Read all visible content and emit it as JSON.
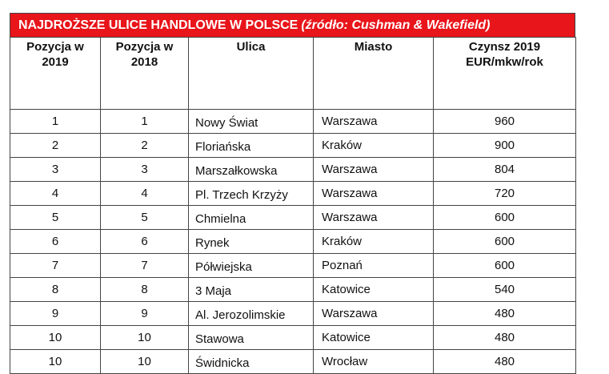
{
  "title": {
    "main": "NAJDROŻSZE ULICE HANDLOWE W POLSCE",
    "source": "(źródło: Cushman & Wakefield)"
  },
  "colors": {
    "title_background": "#e8151a",
    "title_text": "#ffffff",
    "border": "#444444"
  },
  "columns": {
    "pos2019": [
      "Pozycja w",
      "2019"
    ],
    "pos2018": [
      "Pozycja w",
      "2018"
    ],
    "street": "Ulica",
    "city": "Miasto",
    "rent": [
      "Czynsz 2019",
      "EUR/mkw/rok"
    ]
  },
  "rows": [
    {
      "pos2019": "1",
      "pos2018": "1",
      "street": "Nowy Świat",
      "city": "Warszawa",
      "rent": "960"
    },
    {
      "pos2019": "2",
      "pos2018": "2",
      "street": "Floriańska",
      "city": "Kraków",
      "rent": "900"
    },
    {
      "pos2019": "3",
      "pos2018": "3",
      "street": "Marszałkowska",
      "city": "Warszawa",
      "rent": "804"
    },
    {
      "pos2019": "4",
      "pos2018": "4",
      "street": "Pl. Trzech Krzyży",
      "city": "Warszawa",
      "rent": "720"
    },
    {
      "pos2019": "5",
      "pos2018": "5",
      "street": "Chmielna",
      "city": "Warszawa",
      "rent": "600"
    },
    {
      "pos2019": "6",
      "pos2018": "6",
      "street": "Rynek",
      "city": "Kraków",
      "rent": "600"
    },
    {
      "pos2019": "7",
      "pos2018": "7",
      "street": "Półwiejska",
      "city": "Poznań",
      "rent": "600"
    },
    {
      "pos2019": "8",
      "pos2018": "8",
      "street": "3 Maja",
      "city": "Katowice",
      "rent": "540"
    },
    {
      "pos2019": "9",
      "pos2018": "9",
      "street": "Al. Jerozolimskie",
      "city": "Warszawa",
      "rent": "480"
    },
    {
      "pos2019": "10",
      "pos2018": "10",
      "street": "Stawowa",
      "city": "Katowice",
      "rent": "480"
    },
    {
      "pos2019": "10",
      "pos2018": "10",
      "street": "Świdnicka",
      "city": "Wrocław",
      "rent": "480"
    }
  ]
}
